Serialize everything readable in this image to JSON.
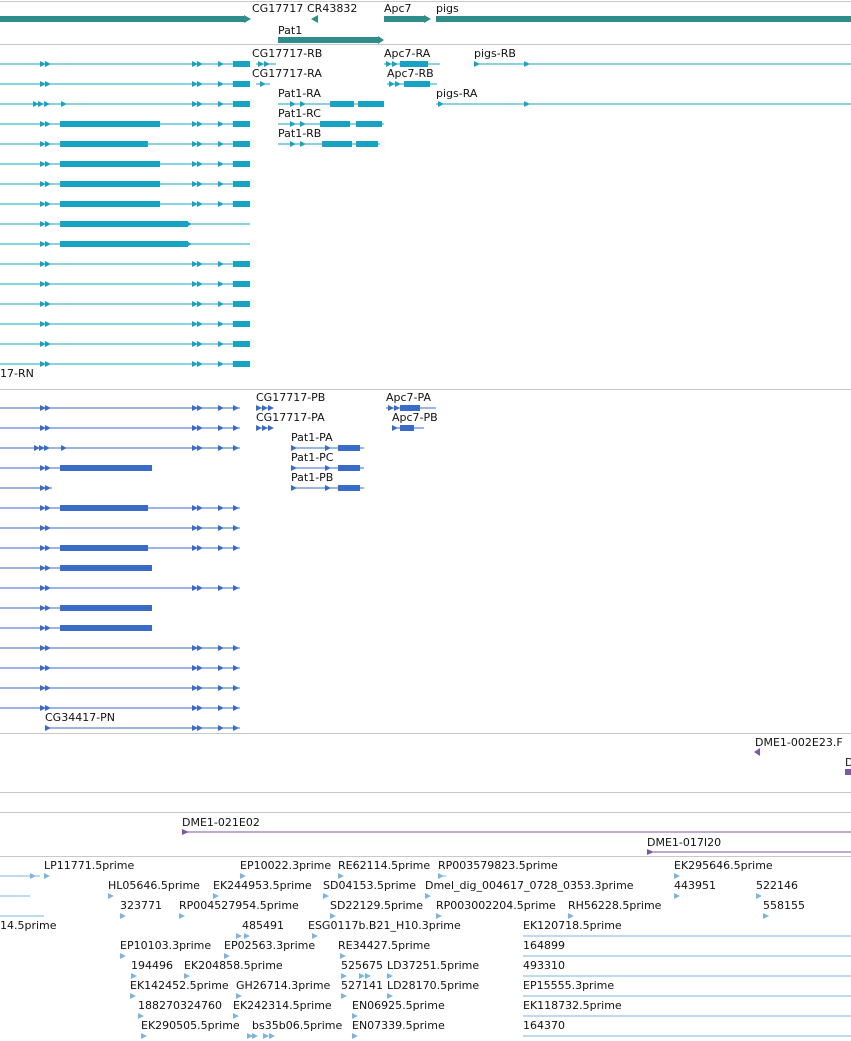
{
  "colors": {
    "gene": "#2e8c89",
    "transcript": "#19a3c3",
    "protein": "#3a6bc8",
    "clone": "#7a5aa8",
    "est": "#7fb5dd",
    "divider": "#c8c8c8"
  },
  "genes": {
    "cg17717": "CG17717",
    "cr43832": "CR43832",
    "apc7": "Apc7",
    "pigs": "pigs",
    "pat1": "Pat1"
  },
  "transcripts": {
    "cg17717_rb": "CG17717-RB",
    "cg17717_ra": "CG17717-RA",
    "apc7_ra": "Apc7-RA",
    "apc7_rb": "Apc7-RB",
    "pigs_rb": "pigs-RB",
    "pigs_ra": "pigs-RA",
    "pat1_ra": "Pat1-RA",
    "pat1_rc": "Pat1-RC",
    "pat1_rb": "Pat1-RB",
    "rn_partial": "17-RN"
  },
  "proteins": {
    "cg17717_pb": "CG17717-PB",
    "cg17717_pa": "CG17717-PA",
    "apc7_pa": "Apc7-PA",
    "apc7_pb": "Apc7-PB",
    "pat1_pa": "Pat1-PA",
    "pat1_pc": "Pat1-PC",
    "pat1_pb": "Pat1-PB",
    "cg34417_pn": "CG34417-PN"
  },
  "clones": {
    "dme1_002e23": "DME1-002E23.F",
    "d_partial": "D",
    "dme1_021e02": "DME1-021E02",
    "dme1_017i20": "DME1-017I20"
  },
  "ests": {
    "lp11771": "LP11771.5prime",
    "ep10022": "EP10022.3prime",
    "re62114": "RE62114.5prime",
    "rp003579823": "RP003579823.5prime",
    "ek295646": "EK295646.5prime",
    "hl05646": "HL05646.5prime",
    "ek244953": "EK244953.5prime",
    "sd04153": "SD04153.5prime",
    "dmel_dig": "Dmel_dig_004617_0728_0353.3prime",
    "n443951": "443951",
    "n522146": "522146",
    "n323771": "323771",
    "rp004527954": "RP004527954.5prime",
    "sd22129": "SD22129.5prime",
    "rp003002204": "RP003002204.5prime",
    "rh56228": "RH56228.5prime",
    "n558155": "558155",
    "p14_5prime": "14.5prime",
    "n485491": "485491",
    "esg0117b": "ESG0117b.B21_H10.3prime",
    "ek120718": "EK120718.5prime",
    "ep10103": "EP10103.3prime",
    "ep02563": "EP02563.3prime",
    "re34427": "RE34427.5prime",
    "n164899": "164899",
    "n194496": "194496",
    "ek204858": "EK204858.5prime",
    "n525675": "525675",
    "ld37251": "LD37251.5prime",
    "n493310": "493310",
    "ek142452": "EK142452.5prime",
    "gh26714": "GH26714.3prime",
    "n527141": "527141",
    "ld28170": "LD28170.5prime",
    "ep15555": "EP15555.3prime",
    "n188270324760": "188270324760",
    "ek242314": "EK242314.5prime",
    "en06925": "EN06925.5prime",
    "ek118732": "EK118732.5prime",
    "ek290505": "EK290505.5prime",
    "bs35b06": "bs35b06.5prime",
    "en07339": "EN07339.5prime",
    "n164370": "164370"
  }
}
